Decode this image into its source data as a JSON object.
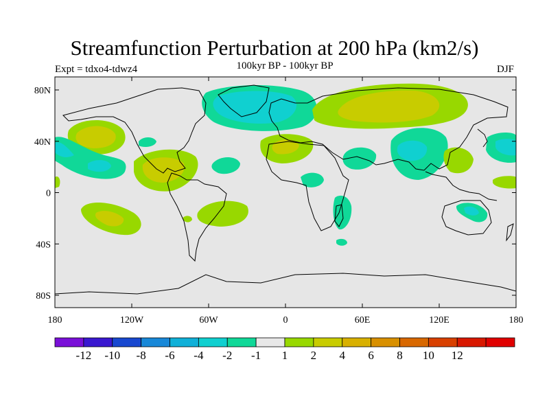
{
  "header": {
    "title": "Streamfunction Perturbation at 200 hPa (km2/s)",
    "subtitle": "100kyr BP - 100kyr BP",
    "left_label": "Expt = tdxo4-tdwz4",
    "right_label": "DJF"
  },
  "map": {
    "lon_ticks": [
      "180",
      "120W",
      "60W",
      "0",
      "60E",
      "120E",
      "180"
    ],
    "lat_ticks": [
      "80N",
      "40N",
      "0",
      "40S",
      "80S"
    ],
    "background_color": "#e6e6e6",
    "projection": "cylindrical-equidistant"
  },
  "colorbar": {
    "colors": [
      "#7a10d8",
      "#3a18d0",
      "#1848d0",
      "#1888d8",
      "#10b0d8",
      "#10d0d0",
      "#10d898",
      "#e8e8e8",
      "#98d800",
      "#c8cc00",
      "#d8b000",
      "#d89000",
      "#d86800",
      "#d84000",
      "#d81800",
      "#e00000"
    ],
    "labels": [
      "-12",
      "-10",
      "-8",
      "-6",
      "-4",
      "-2",
      "-1",
      "1",
      "2",
      "4",
      "6",
      "8",
      "10",
      "12"
    ]
  }
}
